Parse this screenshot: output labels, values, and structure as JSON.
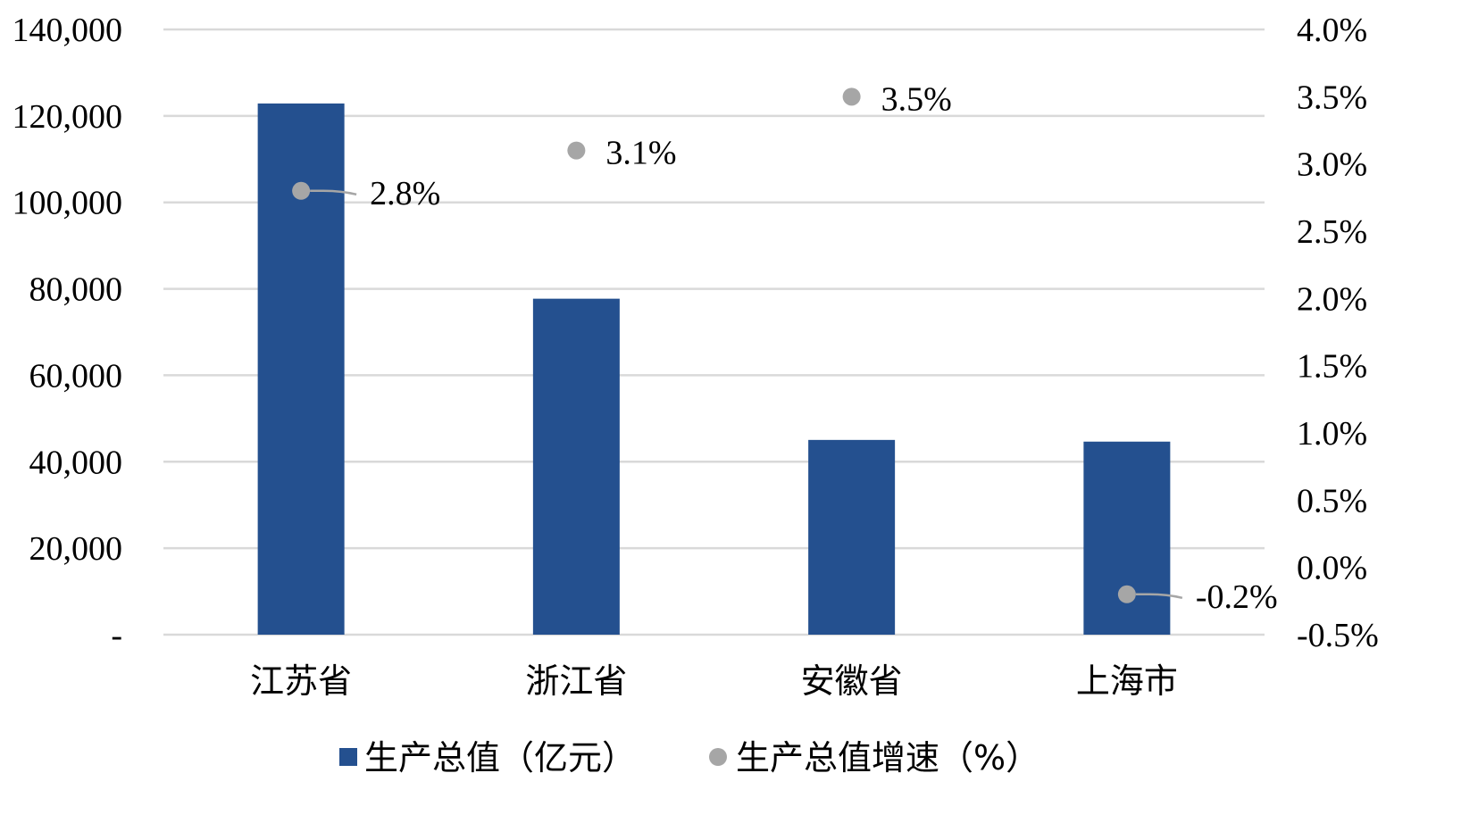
{
  "chart_data": {
    "type": "bar",
    "categories": [
      "江苏省",
      "浙江省",
      "安徽省",
      "上海市"
    ],
    "series": [
      {
        "name": "生产总值（亿元）",
        "type": "bar",
        "axis": "left",
        "values": [
          122876,
          77715,
          45045,
          44653
        ],
        "color": "#24508f"
      },
      {
        "name": "生产总值增速（%）",
        "type": "scatter",
        "axis": "right",
        "values": [
          2.8,
          3.1,
          3.5,
          -0.2
        ],
        "labels": [
          "2.8%",
          "3.1%",
          "3.5%",
          "-0.2%"
        ],
        "color": "#a6a6a6"
      }
    ],
    "left_axis": {
      "min": 0,
      "max": 140000,
      "ticks": [
        0,
        20000,
        40000,
        60000,
        80000,
        100000,
        120000,
        140000
      ],
      "tick_labels": [
        "-",
        "20,000",
        "40,000",
        "60,000",
        "80,000",
        "100,000",
        "120,000",
        "140,000"
      ]
    },
    "right_axis": {
      "min": -0.5,
      "max": 4.0,
      "ticks": [
        -0.5,
        0.0,
        0.5,
        1.0,
        1.5,
        2.0,
        2.5,
        3.0,
        3.5,
        4.0
      ],
      "tick_labels": [
        "-0.5%",
        "0.0%",
        "0.5%",
        "1.0%",
        "1.5%",
        "2.0%",
        "2.5%",
        "3.0%",
        "3.5%",
        "4.0%"
      ]
    },
    "title": "",
    "xlabel": "",
    "ylabel": "",
    "grid": true,
    "legend_position": "bottom",
    "gridline_color": "#d9d9d9"
  }
}
